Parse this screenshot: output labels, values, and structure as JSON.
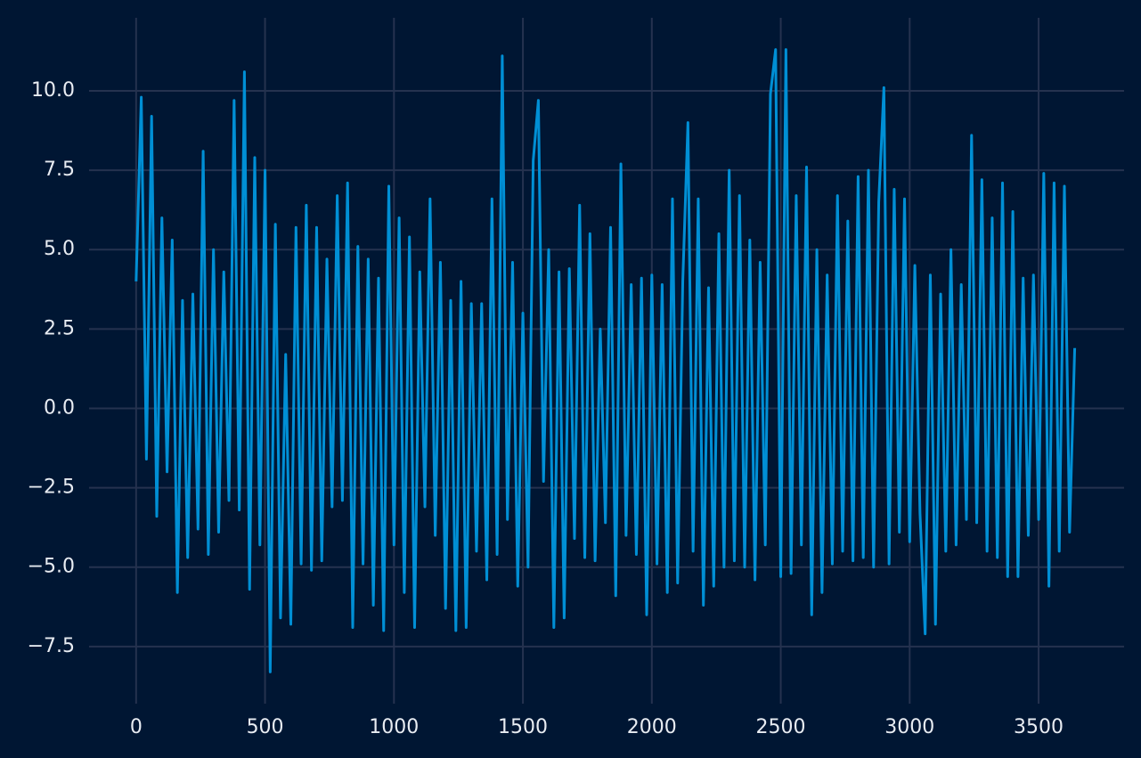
{
  "chart_data": {
    "type": "line",
    "x": [
      0,
      20,
      40,
      60,
      80,
      100,
      120,
      140,
      160,
      180,
      200,
      220,
      240,
      260,
      280,
      300,
      320,
      340,
      360,
      380,
      400,
      420,
      440,
      460,
      480,
      500,
      520,
      540,
      560,
      580,
      600,
      620,
      640,
      660,
      680,
      700,
      720,
      740,
      760,
      780,
      800,
      820,
      840,
      860,
      880,
      900,
      920,
      940,
      960,
      980,
      1000,
      1020,
      1040,
      1060,
      1080,
      1100,
      1120,
      1140,
      1160,
      1180,
      1200,
      1220,
      1240,
      1260,
      1280,
      1300,
      1320,
      1340,
      1360,
      1380,
      1400,
      1420,
      1440,
      1460,
      1480,
      1500,
      1520,
      1540,
      1560,
      1580,
      1600,
      1620,
      1640,
      1660,
      1680,
      1700,
      1720,
      1740,
      1760,
      1780,
      1800,
      1820,
      1840,
      1860,
      1880,
      1900,
      1920,
      1940,
      1960,
      1980,
      2000,
      2020,
      2040,
      2060,
      2080,
      2100,
      2120,
      2140,
      2160,
      2180,
      2200,
      2220,
      2240,
      2260,
      2280,
      2300,
      2320,
      2340,
      2360,
      2380,
      2400,
      2420,
      2440,
      2460,
      2480,
      2500,
      2520,
      2540,
      2560,
      2580,
      2600,
      2620,
      2640,
      2660,
      2680,
      2700,
      2720,
      2740,
      2760,
      2780,
      2800,
      2820,
      2840,
      2860,
      2880,
      2900,
      2920,
      2940,
      2960,
      2980,
      3000,
      3020,
      3040,
      3060,
      3080,
      3100,
      3120,
      3140,
      3160,
      3180,
      3200,
      3220,
      3240,
      3260,
      3280,
      3300,
      3320,
      3340,
      3360,
      3380,
      3400,
      3420,
      3440,
      3460,
      3480,
      3500,
      3520,
      3540,
      3560,
      3580,
      3600,
      3620,
      3640
    ],
    "series": [
      {
        "color": "#008fd5",
        "values": [
          4.0,
          9.8,
          -1.6,
          9.2,
          -3.4,
          6.0,
          -2.0,
          5.3,
          -5.8,
          3.4,
          -4.7,
          3.6,
          -3.8,
          8.1,
          -4.6,
          5.0,
          -3.9,
          4.3,
          -2.9,
          9.7,
          -3.2,
          10.6,
          -5.7,
          7.9,
          -4.3,
          7.5,
          -8.3,
          5.8,
          -6.6,
          1.7,
          -6.8,
          5.7,
          -4.9,
          6.4,
          -5.1,
          5.7,
          -4.8,
          4.7,
          -3.1,
          6.7,
          -2.9,
          7.1,
          -6.9,
          5.1,
          -4.9,
          4.7,
          -6.2,
          4.1,
          -7.0,
          7.0,
          -4.3,
          6.0,
          -5.8,
          5.4,
          -6.9,
          4.3,
          -3.1,
          6.6,
          -4.0,
          4.6,
          -6.3,
          3.4,
          -7.0,
          4.0,
          -6.9,
          3.3,
          -4.5,
          3.3,
          -5.4,
          6.6,
          -4.6,
          11.1,
          -3.5,
          4.6,
          -5.6,
          3.0,
          -5.0,
          7.8,
          9.7,
          -2.3,
          5.0,
          -6.9,
          4.3,
          -6.6,
          4.4,
          -4.1,
          6.4,
          -4.7,
          5.5,
          -4.8,
          2.5,
          -3.6,
          5.7,
          -5.9,
          7.7,
          -4.0,
          3.9,
          -4.6,
          4.1,
          -6.5,
          4.2,
          -4.9,
          3.9,
          -5.8,
          6.6,
          -5.5,
          4.0,
          9.0,
          -4.5,
          6.6,
          -6.2,
          3.8,
          -5.6,
          5.5,
          -5.0,
          7.5,
          -4.8,
          6.7,
          -5.0,
          5.3,
          -5.4,
          4.6,
          -4.3,
          9.9,
          11.3,
          -5.3,
          11.3,
          -5.2,
          6.7,
          -4.3,
          7.6,
          -6.5,
          5.0,
          -5.8,
          4.2,
          -4.9,
          6.7,
          -4.5,
          5.9,
          -4.8,
          7.3,
          -4.7,
          7.5,
          -5.0,
          6.5,
          10.1,
          -4.9,
          6.9,
          -3.9,
          6.6,
          -4.2,
          4.5,
          -3.3,
          -7.1,
          4.2,
          -6.8,
          3.6,
          -4.5,
          5.0,
          -4.3,
          3.9,
          -3.5,
          8.6,
          -3.6,
          7.2,
          -4.5,
          6.0,
          -4.7,
          7.1,
          -5.3,
          6.2,
          -5.3,
          4.1,
          -4.0,
          4.2,
          -3.5,
          7.4,
          -5.6,
          7.1,
          -4.5,
          7.0,
          -3.9,
          1.9
        ]
      }
    ],
    "xlim": [
      -182.45,
      3831.45
    ],
    "ylim": [
      -9.3,
      12.3
    ],
    "xticks": [
      0,
      500,
      1000,
      1500,
      2000,
      2500,
      3000,
      3500
    ],
    "yticks": [
      {
        "value": -7.5,
        "label": "−7.5"
      },
      {
        "value": -5.0,
        "label": "−5.0"
      },
      {
        "value": -2.5,
        "label": "−2.5"
      },
      {
        "value": 0.0,
        "label": "0.0"
      },
      2.5,
      {
        "value": 5.0,
        "label": "5.0"
      },
      7.5,
      {
        "value": 10.0,
        "label": "10.0"
      }
    ],
    "grid": true
  }
}
